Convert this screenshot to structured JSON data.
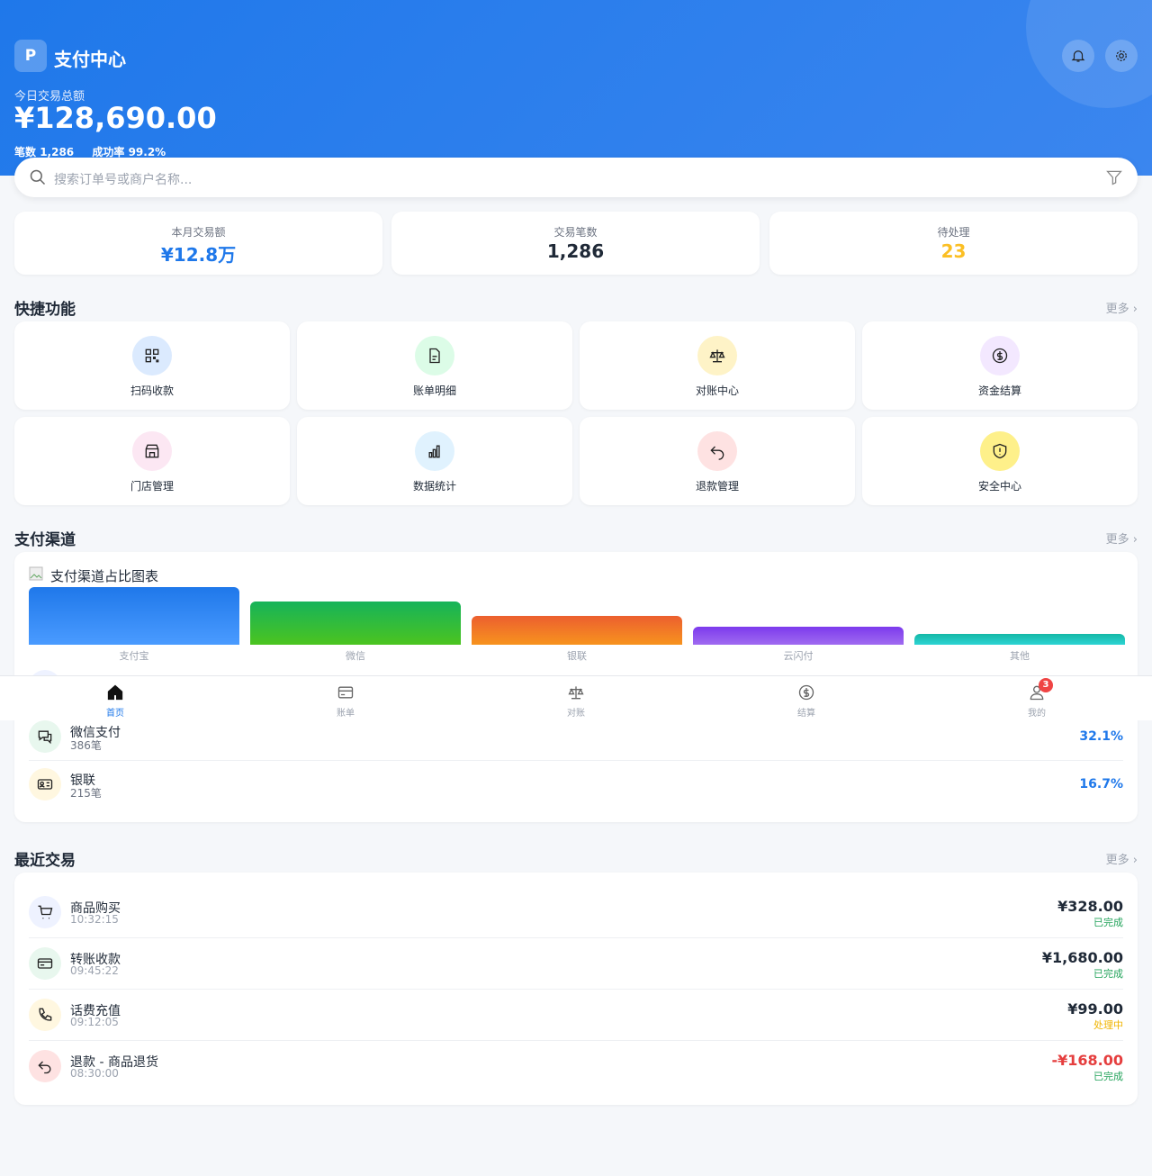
{
  "header": {
    "logo": "P",
    "title": "支付中心",
    "amount_label": "今日交易总额",
    "amount": "¥128,690.00",
    "count_label": "笔数",
    "count": "1,286",
    "rate_label": "成功率",
    "rate": "99.2%"
  },
  "search": {
    "placeholder": "搜索订单号或商户名称..."
  },
  "stats": [
    {
      "label": "本月交易额",
      "value": "¥12.8万"
    },
    {
      "label": "交易笔数",
      "value": "1,286"
    },
    {
      "label": "待处理",
      "value": "23"
    }
  ],
  "quick": {
    "title": "快捷功能",
    "more": "更多 ›",
    "items": [
      "扫码收款",
      "账单明细",
      "对账中心",
      "资金结算",
      "门店管理",
      "数据统计",
      "退款管理",
      "安全中心"
    ]
  },
  "channels": {
    "title": "支付渠道",
    "more": "更多 ›",
    "chart": {
      "type": "bar",
      "title": "支付渠道占比图表",
      "categories": [
        "支付宝",
        "微信",
        "银联",
        "云闪付",
        "其他"
      ],
      "values": [
        64,
        48,
        32,
        20,
        12
      ]
    },
    "rows": [
      {
        "name": "微信支付",
        "count": "386笔",
        "pct": "32.1%"
      },
      {
        "name": "银联",
        "count": "215笔",
        "pct": "16.7%"
      }
    ]
  },
  "nav": {
    "items": [
      "首页",
      "账单",
      "对账",
      "结算",
      "我的"
    ],
    "badge": "3"
  },
  "recent": {
    "title": "最近交易",
    "more": "更多 ›",
    "rows": [
      {
        "name": "商品购买",
        "time": "10:32:15",
        "amount": "¥328.00",
        "status": "已完成"
      },
      {
        "name": "转账收款",
        "time": "09:45:22",
        "amount": "¥1,680.00",
        "status": "已完成"
      },
      {
        "name": "话费充值",
        "time": "09:12:05",
        "amount": "¥99.00",
        "status": "处理中"
      },
      {
        "name": "退款 - 商品退货",
        "time": "08:30:00",
        "amount": "-¥168.00",
        "status": "已完成"
      }
    ]
  }
}
